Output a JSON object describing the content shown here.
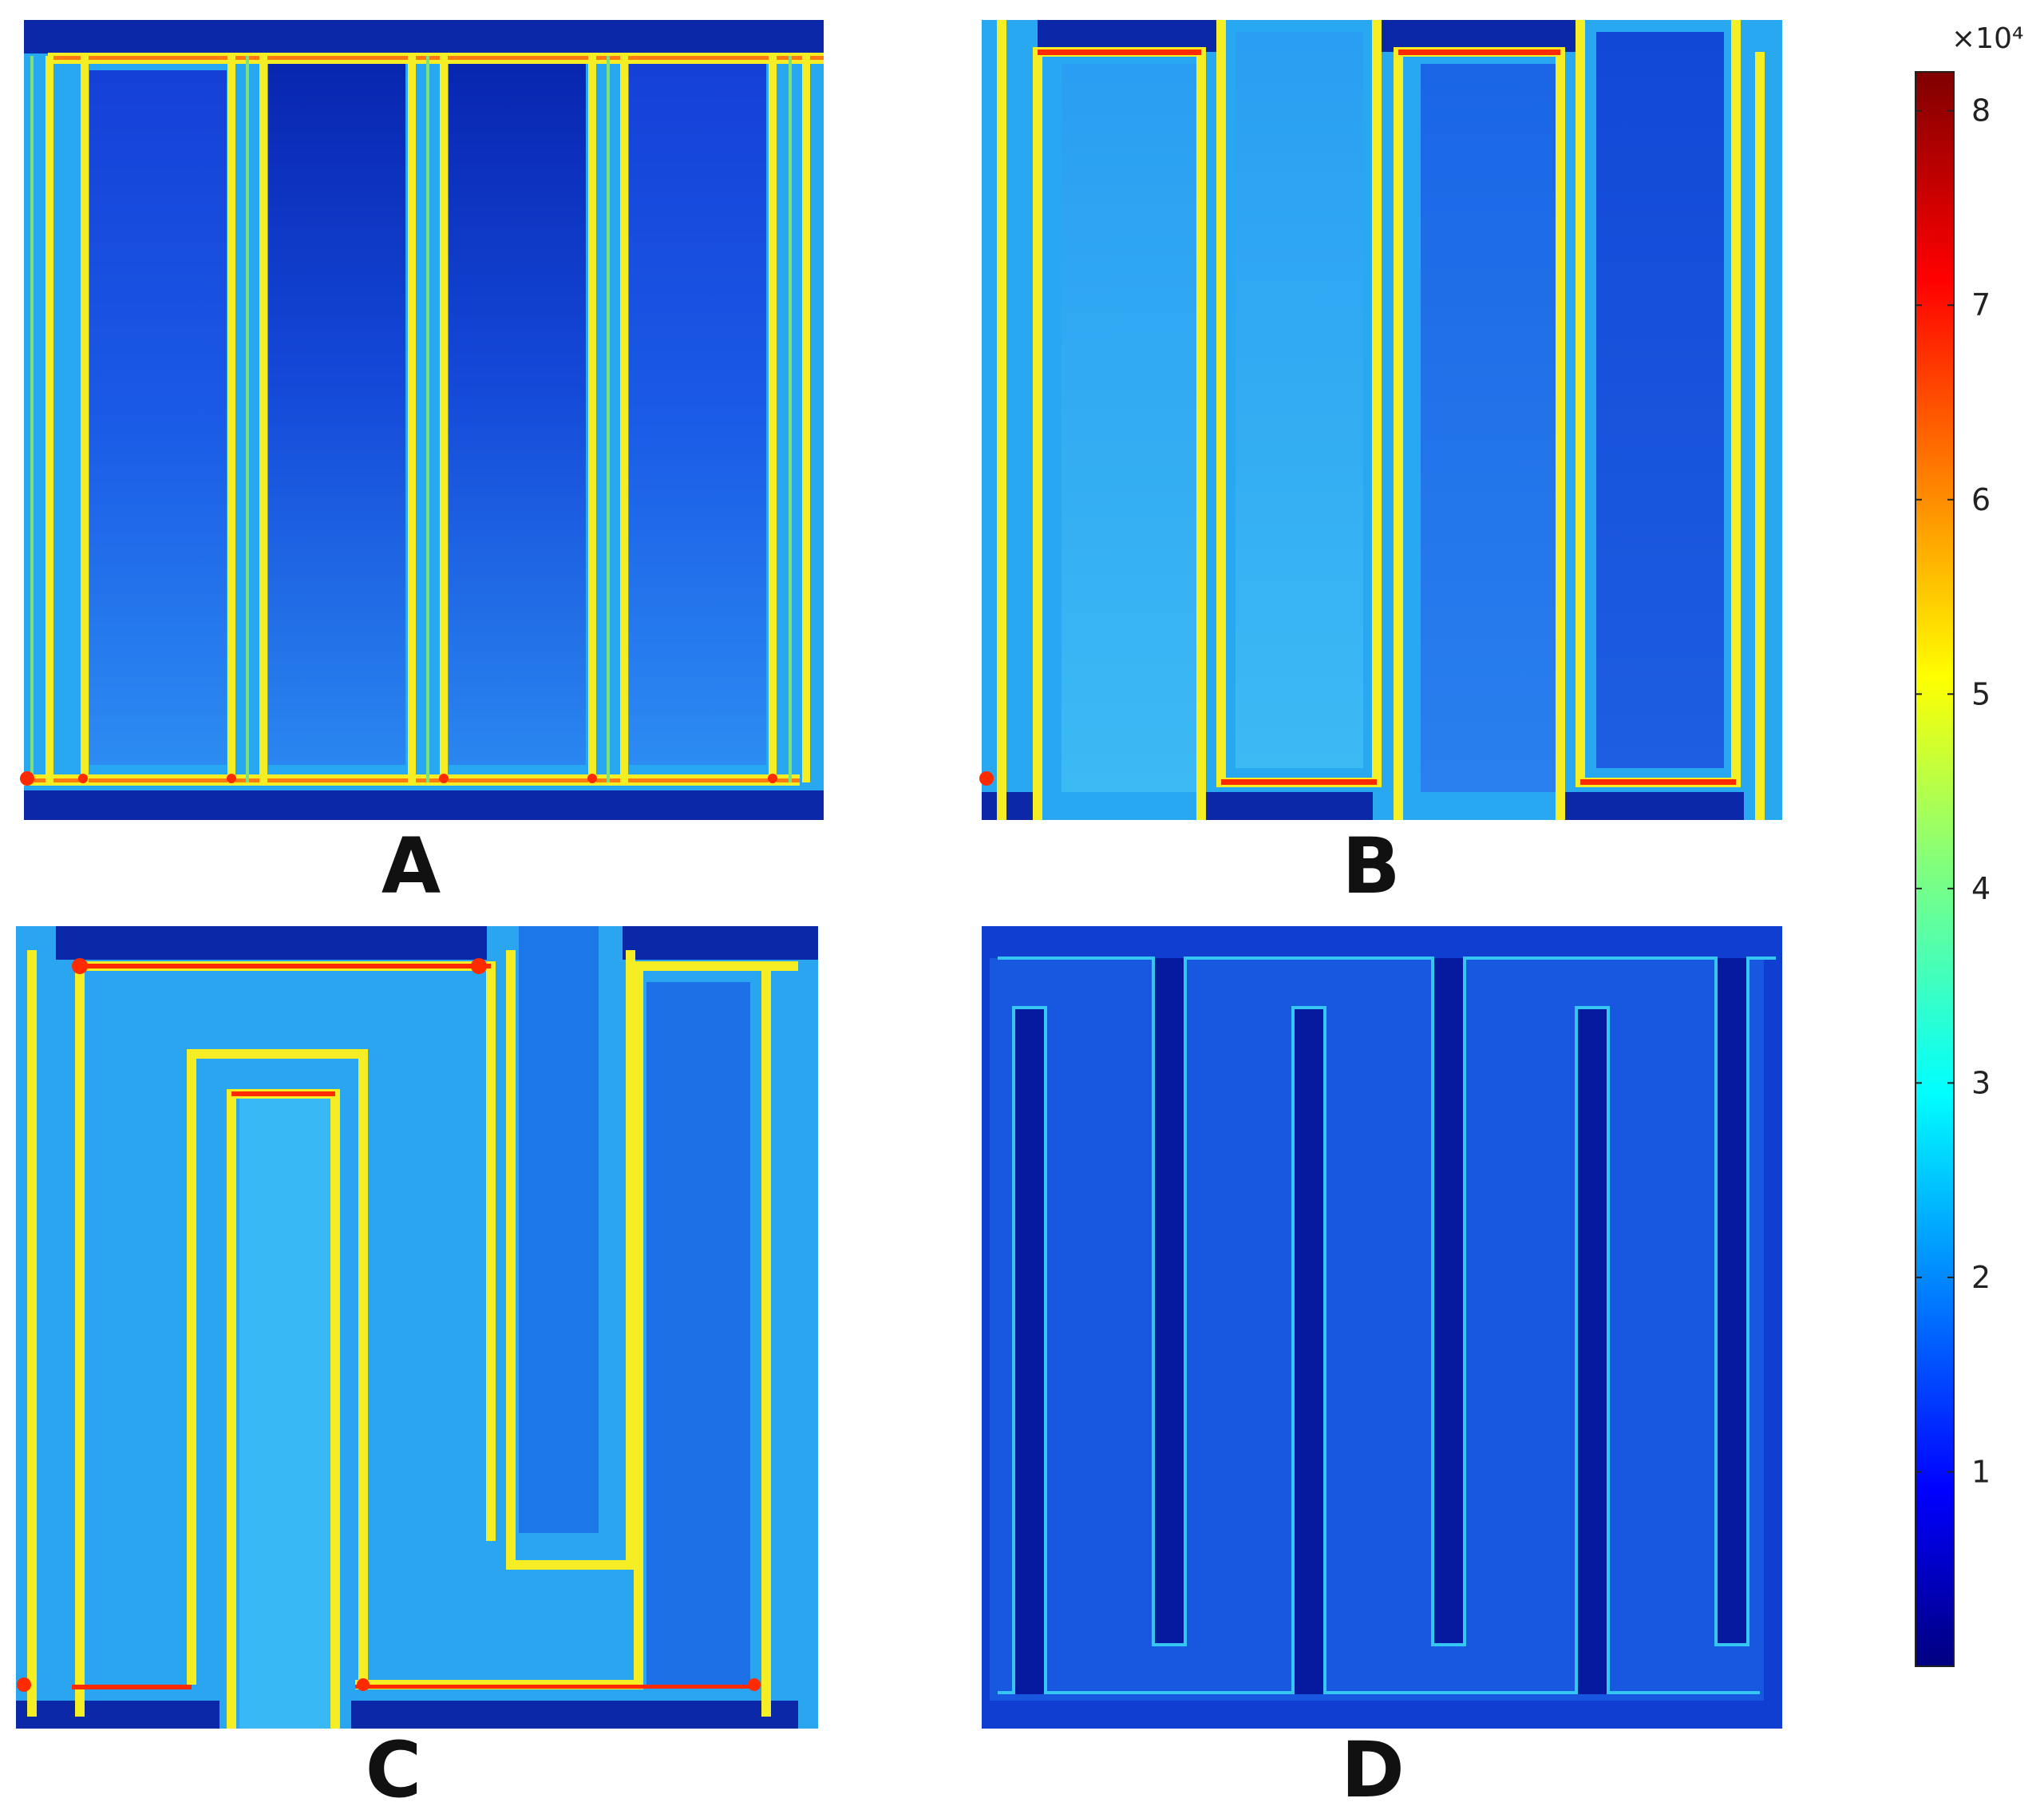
{
  "panels": [
    {
      "id": "A",
      "label": "A"
    },
    {
      "id": "B",
      "label": "B"
    },
    {
      "id": "C",
      "label": "C"
    },
    {
      "id": "D",
      "label": "D"
    }
  ],
  "colorbar": {
    "colormap": "jet",
    "multiplier": "×10⁴",
    "min": 0,
    "max": 8.2,
    "ticks": [
      {
        "value": 1,
        "label": "1"
      },
      {
        "value": 2,
        "label": "2"
      },
      {
        "value": 3,
        "label": "3"
      },
      {
        "value": 4,
        "label": "4"
      },
      {
        "value": 5,
        "label": "5"
      },
      {
        "value": 6,
        "label": "6"
      },
      {
        "value": 7,
        "label": "7"
      },
      {
        "value": 8,
        "label": "8"
      }
    ]
  },
  "colors": {
    "field_high": "#ff2a00",
    "field_mid": "#f5ee25",
    "field_low_cyan": "#2ec6f5",
    "field_channel": "#1e6cf0",
    "field_deep": "#0a2fb8",
    "field_darkest": "#061aa0"
  }
}
